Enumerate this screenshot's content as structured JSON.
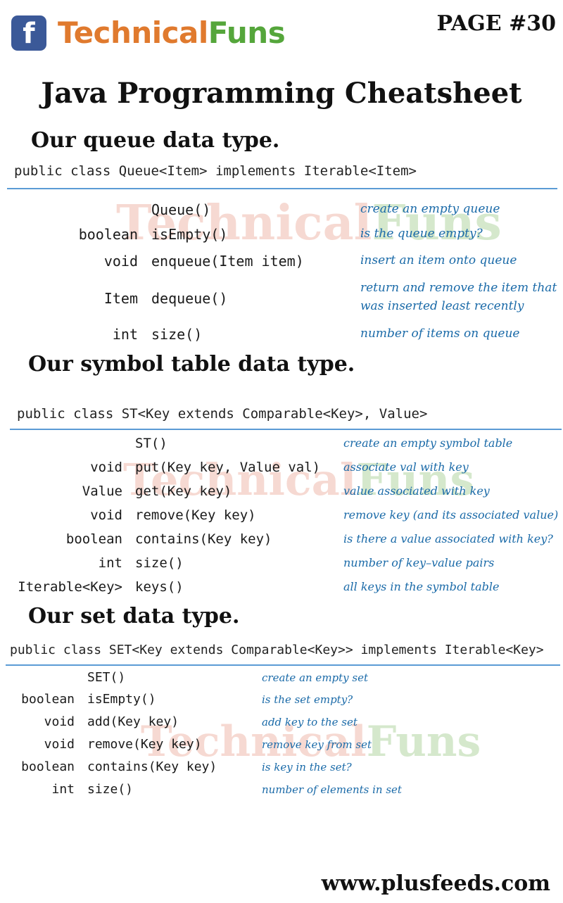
{
  "header": {
    "logo_glyph": "f",
    "brand_part1": "Technical",
    "brand_part2": "Funs",
    "page_label": "PAGE #30"
  },
  "title": "Java Programming Cheatsheet",
  "sections": [
    {
      "heading": "Our queue data type.",
      "signature": "public class Queue<Item> implements Iterable<Item>",
      "rows": [
        {
          "ret": "",
          "method": "Queue()",
          "desc": "create an empty queue"
        },
        {
          "ret": "boolean",
          "method": "isEmpty()",
          "desc": "is the queue empty?"
        },
        {
          "ret": "void",
          "method": "enqueue(Item item)",
          "desc": "insert an item onto queue"
        },
        {
          "ret": "Item",
          "method": "dequeue()",
          "desc": "return and remove the item that",
          "desc2": "was inserted least recently"
        },
        {
          "ret": "int",
          "method": "size()",
          "desc": "number of items on queue"
        }
      ]
    },
    {
      "heading": "Our symbol table data type.",
      "signature": "public class ST<Key extends Comparable<Key>, Value>",
      "rows": [
        {
          "ret": "",
          "method": "ST()",
          "desc": "create an empty symbol table"
        },
        {
          "ret": "void",
          "method": "put(Key key, Value val)",
          "desc": "associate val with key"
        },
        {
          "ret": "Value",
          "method": "get(Key key)",
          "desc": "value associated with key"
        },
        {
          "ret": "void",
          "method": "remove(Key key)",
          "desc": "remove key (and its associated value)"
        },
        {
          "ret": "boolean",
          "method": "contains(Key key)",
          "desc": "is there a value associated with key?"
        },
        {
          "ret": "int",
          "method": "size()",
          "desc": "number of key–value pairs"
        },
        {
          "ret": "Iterable<Key>",
          "method": "keys()",
          "desc": "all keys in the symbol table"
        }
      ]
    },
    {
      "heading": "Our set data type.",
      "signature": "public class SET<Key extends Comparable<Key>> implements Iterable<Key>",
      "rows": [
        {
          "ret": "",
          "method": "SET()",
          "desc": "create an empty set"
        },
        {
          "ret": "boolean",
          "method": "isEmpty()",
          "desc": "is the set empty?"
        },
        {
          "ret": "void",
          "method": "add(Key key)",
          "desc": "add key to the set"
        },
        {
          "ret": "void",
          "method": "remove(Key key)",
          "desc": "remove key from set"
        },
        {
          "ret": "boolean",
          "method": "contains(Key key)",
          "desc": "is key in the set?"
        },
        {
          "ret": "int",
          "method": "size()",
          "desc": "number of elements in set"
        }
      ]
    }
  ],
  "watermark": {
    "part1": "Technical",
    "part2": "Funs"
  },
  "footer": "www.plusfeeds.com",
  "colors": {
    "brand_orange": "#e07a2e",
    "brand_green": "#55a63b",
    "facebook_blue": "#3b5998",
    "description_blue": "#1a6aa8",
    "rule_blue": "#5b9bd5"
  }
}
